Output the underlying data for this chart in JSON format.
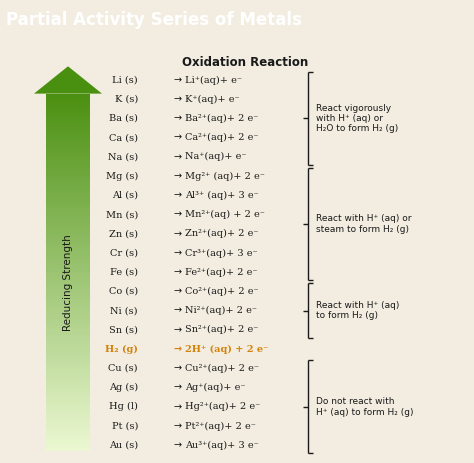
{
  "title": "Partial Activity Series of Metals",
  "title_bg": "#6db33f",
  "title_color": "#ffffff",
  "subtitle": "Oxidation Reaction",
  "bg_color": "#f2ede0",
  "reactions": [
    {
      "left": "Li (s)  ",
      "right": "Li⁺(aq)+ e⁻",
      "highlight": false
    },
    {
      "left": "K (s)   ",
      "right": "K⁺(aq)+ e⁻",
      "highlight": false
    },
    {
      "left": "Ba (s)  ",
      "right": "Ba²⁺(aq)+ 2 e⁻",
      "highlight": false
    },
    {
      "left": "Ca (s)  ",
      "right": "Ca²⁺(aq)+ 2 e⁻",
      "highlight": false
    },
    {
      "left": "Na (s)  ",
      "right": "Na⁺(aq)+ e⁻",
      "highlight": false
    },
    {
      "left": "Mg (s)  ",
      "right": "Mg²⁺ (aq)+ 2 e⁻",
      "highlight": false
    },
    {
      "left": "Al (s)  ",
      "right": "Al³⁺ (aq)+ 3 e⁻",
      "highlight": false
    },
    {
      "left": "Mn (s)  ",
      "right": "Mn²⁺(aq) + 2 e⁻",
      "highlight": false
    },
    {
      "left": "Zn (s)  ",
      "right": "Zn²⁺(aq)+ 2 e⁻",
      "highlight": false
    },
    {
      "left": "Cr (s)  ",
      "right": "Cr³⁺(aq)+ 3 e⁻",
      "highlight": false
    },
    {
      "left": "Fe (s)  ",
      "right": "Fe²⁺(aq)+ 2 e⁻",
      "highlight": false
    },
    {
      "left": "Co (s)  ",
      "right": "Co²⁺(aq)+ 2 e⁻",
      "highlight": false
    },
    {
      "left": "Ni (s)  ",
      "right": "Ni²⁺(aq)+ 2 e⁻",
      "highlight": false
    },
    {
      "left": "Sn (s)  ",
      "right": "Sn²⁺(aq)+ 2 e⁻",
      "highlight": false
    },
    {
      "left": "H₂ (g)  ",
      "right": "2H⁺ (aq) + 2 e⁻",
      "highlight": true
    },
    {
      "left": "Cu (s)  ",
      "right": "Cu²⁺(aq)+ 2 e⁻",
      "highlight": false
    },
    {
      "left": "Ag (s)  ",
      "right": "Ag⁺(aq)+ e⁻",
      "highlight": false
    },
    {
      "left": "Hg (l)  ",
      "right": "Hg²⁺(aq)+ 2 e⁻",
      "highlight": false
    },
    {
      "left": "Pt (s)  ",
      "right": "Pt²⁺(aq)+ 2 e⁻",
      "highlight": false
    },
    {
      "left": "Au (s)  ",
      "right": "Au³⁺(aq)+ 3 e⁻",
      "highlight": false
    }
  ],
  "brackets": [
    {
      "rows": [
        0,
        4
      ],
      "label": "React vigorously\nwith H⁺ (aq) or\nH₂O to form H₂ (g)"
    },
    {
      "rows": [
        5,
        10
      ],
      "label": "React with H⁺ (aq) or\nsteam to form H₂ (g)"
    },
    {
      "rows": [
        11,
        13
      ],
      "label": "React with H⁺ (aq)\nto form H₂ (g)"
    },
    {
      "rows": [
        15,
        19
      ],
      "label": "Do not react with\nH⁺ (aq) to form H₂ (g)"
    }
  ],
  "highlight_color": "#d4820a",
  "text_color": "#1a1a1a",
  "arrow_color_dark": "#4a9010",
  "arrow_color_light": "#e0f0b0",
  "title_fontsize": 12,
  "subtitle_fontsize": 8.5,
  "reaction_fontsize": 7.0,
  "label_fontsize": 6.5
}
